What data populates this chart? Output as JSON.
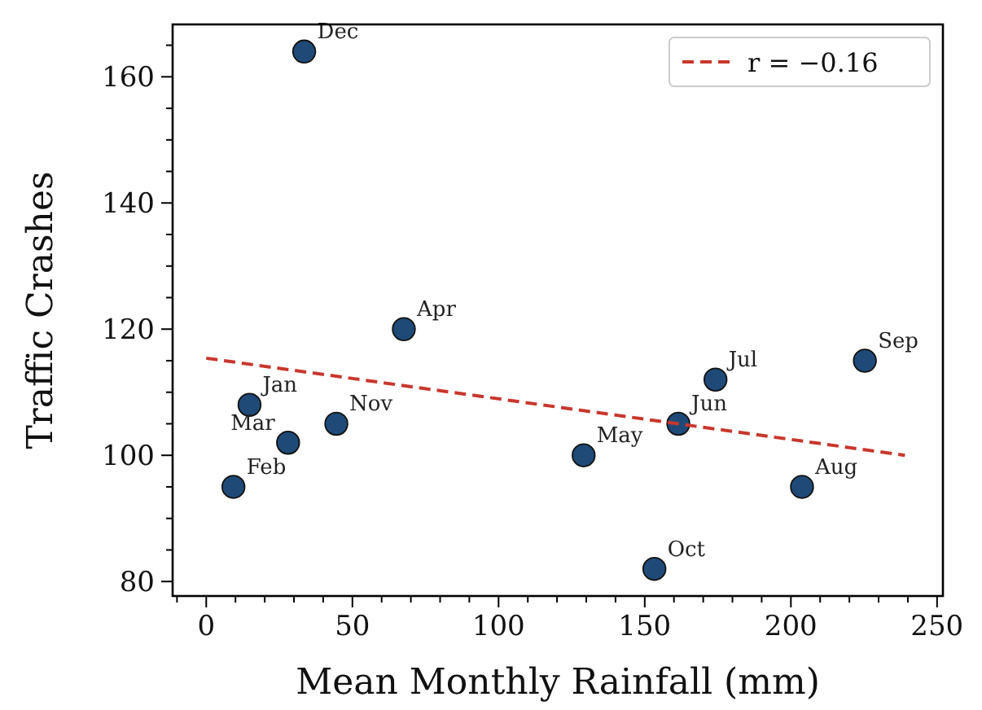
{
  "chart_data": {
    "type": "scatter",
    "xlabel": "Mean Monthly Rainfall (mm)",
    "ylabel": "Traffic Crashes",
    "xlim": [
      -11.5,
      252
    ],
    "ylim": [
      77.7,
      168.3
    ],
    "xticks": [
      {
        "value": -10,
        "label": null
      },
      0,
      {
        "value": 10,
        "label": null
      },
      {
        "value": 20,
        "label": null
      },
      {
        "value": 30,
        "label": null
      },
      {
        "value": 40,
        "label": null
      },
      50,
      {
        "value": 60,
        "label": null
      },
      {
        "value": 70,
        "label": null
      },
      {
        "value": 80,
        "label": null
      },
      {
        "value": 90,
        "label": null
      },
      100,
      {
        "value": 110,
        "label": null
      },
      {
        "value": 120,
        "label": null
      },
      {
        "value": 130,
        "label": null
      },
      {
        "value": 140,
        "label": null
      },
      150,
      {
        "value": 160,
        "label": null
      },
      {
        "value": 170,
        "label": null
      },
      {
        "value": 180,
        "label": null
      },
      {
        "value": 190,
        "label": null
      },
      200,
      {
        "value": 210,
        "label": null
      },
      {
        "value": 220,
        "label": null
      },
      {
        "value": 230,
        "label": null
      },
      {
        "value": 240,
        "label": null
      },
      250
    ],
    "yticks": [
      80,
      {
        "value": 85,
        "label": null
      },
      {
        "value": 90,
        "label": null
      },
      {
        "value": 95,
        "label": null
      },
      100,
      {
        "value": 105,
        "label": null
      },
      {
        "value": 110,
        "label": null
      },
      {
        "value": 115,
        "label": null
      },
      120,
      {
        "value": 125,
        "label": null
      },
      {
        "value": 130,
        "label": null
      },
      {
        "value": 135,
        "label": null
      },
      140,
      {
        "value": 145,
        "label": null
      },
      {
        "value": 150,
        "label": null
      },
      {
        "value": 155,
        "label": null
      },
      160,
      {
        "value": 165,
        "label": null
      }
    ],
    "grid": false,
    "legend": "top right",
    "marker": "circle",
    "series": [
      {
        "color": "#1f4a78",
        "x": [
          14.8,
          9.3,
          28,
          67.6,
          129.1,
          161.5,
          174.2,
          203.8,
          225.3,
          153.3,
          44.5,
          33.5
        ],
        "values": [
          108,
          95,
          102,
          120,
          100,
          105,
          112,
          95,
          115,
          82,
          105,
          164
        ]
      },
      {
        "type": "line",
        "name": "r = −0.16",
        "color": "#c8372d",
        "line_style": "dashed",
        "marker": "none",
        "x": [
          0,
          239
        ],
        "values": [
          115.4,
          100
        ]
      }
    ],
    "annotations": [
      {
        "text": "Jan",
        "x": 14.8,
        "y": 108
      },
      {
        "text": "Feb",
        "x": 9.3,
        "y": 95
      },
      {
        "text": "Mar",
        "x": 28,
        "y": 102
      },
      {
        "text": "Apr",
        "x": 67.6,
        "y": 120
      },
      {
        "text": "May",
        "x": 129.1,
        "y": 100
      },
      {
        "text": "Jun",
        "x": 161.5,
        "y": 105
      },
      {
        "text": "Jul",
        "x": 174.2,
        "y": 112
      },
      {
        "text": "Aug",
        "x": 203.8,
        "y": 95
      },
      {
        "text": "Sep",
        "x": 225.3,
        "y": 115
      },
      {
        "text": "Oct",
        "x": 153.3,
        "y": 82
      },
      {
        "text": "Nov",
        "x": 44.5,
        "y": 105
      },
      {
        "text": "Dec",
        "x": 33.5,
        "y": 164
      }
    ]
  }
}
